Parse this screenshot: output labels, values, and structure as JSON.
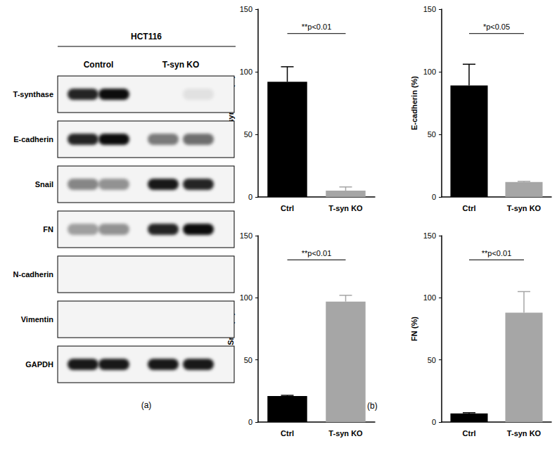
{
  "panel_a": {
    "label": "(a)",
    "cell_line": "HCT116",
    "groups": [
      "Control",
      "T-syn KO"
    ],
    "rows": [
      {
        "name": "T-synthase",
        "signal": [
          0.85,
          0.95,
          0.0,
          0.08
        ]
      },
      {
        "name": "E-cadherin",
        "signal": [
          0.85,
          0.95,
          0.5,
          0.55
        ]
      },
      {
        "name": "Snail",
        "signal": [
          0.45,
          0.4,
          0.9,
          0.85
        ]
      },
      {
        "name": "FN",
        "signal": [
          0.35,
          0.4,
          0.85,
          0.95
        ]
      },
      {
        "name": "N-cadherin",
        "signal": [
          0.0,
          0.0,
          0.0,
          0.0
        ]
      },
      {
        "name": "Vimentin",
        "signal": [
          0.0,
          0.0,
          0.0,
          0.0
        ]
      },
      {
        "name": "GAPDH",
        "signal": [
          0.9,
          0.9,
          0.9,
          0.9
        ]
      }
    ]
  },
  "panel_b": {
    "label": "(b)"
  },
  "chart_data": [
    {
      "type": "bar",
      "ylabel": "T-synthase (%)",
      "categories": [
        "Ctrl",
        "T-syn KO"
      ],
      "values": [
        92,
        5
      ],
      "errors": [
        12,
        3
      ],
      "colors": [
        "#000000",
        "#a6a6a6"
      ],
      "ylim": [
        0,
        150
      ],
      "yticks": [
        0,
        50,
        100,
        150
      ],
      "annotation": "**p<0.01",
      "grid": false
    },
    {
      "type": "bar",
      "ylabel": "E-cadherin (%)",
      "categories": [
        "Ctrl",
        "T-syn KO"
      ],
      "values": [
        89,
        12
      ],
      "errors": [
        17,
        0.5
      ],
      "colors": [
        "#000000",
        "#a6a6a6"
      ],
      "ylim": [
        0,
        150
      ],
      "yticks": [
        0,
        50,
        100,
        150
      ],
      "annotation": "*p<0.05",
      "grid": false
    },
    {
      "type": "bar",
      "ylabel": "Snail (%)",
      "categories": [
        "Ctrl",
        "T-syn KO"
      ],
      "values": [
        21,
        97
      ],
      "errors": [
        0.5,
        5
      ],
      "colors": [
        "#000000",
        "#a6a6a6"
      ],
      "ylim": [
        0,
        150
      ],
      "yticks": [
        0,
        50,
        100,
        150
      ],
      "annotation": "**p<0.01",
      "grid": false
    },
    {
      "type": "bar",
      "ylabel": "FN (%)",
      "categories": [
        "Ctrl",
        "T-syn KO"
      ],
      "values": [
        7,
        88
      ],
      "errors": [
        0.5,
        17
      ],
      "colors": [
        "#000000",
        "#a6a6a6"
      ],
      "ylim": [
        0,
        150
      ],
      "yticks": [
        0,
        50,
        100,
        150
      ],
      "annotation": "**p<0.01",
      "grid": false
    }
  ]
}
